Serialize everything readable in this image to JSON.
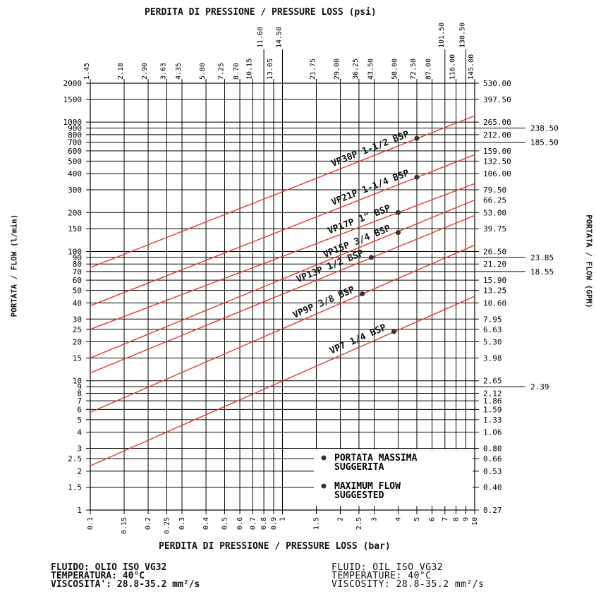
{
  "titles": {
    "top": "PERDITA DI PRESSIONE / PRESSURE LOSS (psi)",
    "bottom": "PERDITA DI PRESSIONE / PRESSURE LOSS (bar)",
    "left": "PORTATA / FLOW (l/min)",
    "right": "PORTATA / FLOW (GPM)"
  },
  "legend": {
    "line1a": "PORTATA MASSIMA",
    "line1b": "SUGGERITA",
    "line2a": "MAXIMUM FLOW",
    "line2b": "SUGGESTED"
  },
  "footer": {
    "it": [
      "FLUIDO: OLIO ISO VG32",
      "TEMPERATURA: 40°C",
      "VISCOSITA': 28.8-35.2 mm²/s"
    ],
    "en": [
      "FLUID: OIL ISO VG32",
      "TEMPERATURE: 40°C",
      "VISCOSITY: 28.8-35.2 mm²/s"
    ]
  },
  "colors": {
    "series": "#e8392b",
    "grid": "#000000",
    "marker": "#333333"
  },
  "chart_data": {
    "type": "line",
    "x_scale": "log",
    "y_scale": "log",
    "xlim": [
      0.1,
      10
    ],
    "ylim": [
      1,
      2000
    ],
    "xlabel": "PERDITA DI PRESSIONE / PRESSURE LOSS (bar)",
    "ylabel": "PORTATA / FLOW (l/min)",
    "x2label": "PERDITA DI PRESSIONE / PRESSURE LOSS (psi)",
    "y2label": "PORTATA / FLOW (GPM)",
    "x_ticks": [
      0.1,
      0.15,
      0.2,
      0.25,
      0.3,
      0.4,
      0.5,
      0.6,
      0.7,
      0.8,
      0.9,
      1,
      1.5,
      2,
      2.5,
      3,
      4,
      5,
      6,
      7,
      8,
      9,
      10
    ],
    "x_tick_labels": [
      "0.1",
      "0.15",
      "0.2",
      "0.25",
      "0.3",
      "0.4",
      "0.5",
      "0.6",
      "0.7",
      "0.8",
      "0.9",
      "1",
      "1.5",
      "2",
      "2.5",
      "3",
      "4",
      "5",
      "6",
      "7",
      "8",
      "9",
      "10"
    ],
    "x2_ticks": [
      0.1,
      0.15,
      0.2,
      0.25,
      0.3,
      0.4,
      0.5,
      0.6,
      0.7,
      0.8,
      0.9,
      1,
      1.5,
      2,
      2.5,
      3,
      4,
      5,
      6,
      7,
      8,
      9,
      10
    ],
    "x2_tick_labels": [
      "1.45",
      "2.18",
      "2.90",
      "3.63",
      "4.35",
      "5.80",
      "7.25",
      "8.70",
      "10.15",
      "11.60",
      "13.05",
      "14.50",
      "21.75",
      "29.00",
      "36.25",
      "43.50",
      "58.00",
      "72.50",
      "87.00",
      "101.50",
      "116.00",
      "130.50",
      "145.00"
    ],
    "y_ticks": [
      1,
      1.5,
      2,
      2.5,
      3,
      4,
      5,
      6,
      7,
      8,
      9,
      10,
      15,
      20,
      25,
      30,
      40,
      50,
      60,
      70,
      80,
      90,
      100,
      150,
      200,
      300,
      400,
      500,
      600,
      700,
      800,
      900,
      1000,
      1500,
      2000
    ],
    "y_tick_labels": [
      "1",
      "1.5",
      "2",
      "2.5",
      "3",
      "4",
      "5",
      "6",
      "7",
      "8",
      "9",
      "10",
      "15",
      "20",
      "25",
      "30",
      "40",
      "50",
      "60",
      "70",
      "80",
      "90",
      "100",
      "150",
      "200",
      "300",
      "400",
      "500",
      "600",
      "700",
      "800",
      "900",
      "1000",
      "1500",
      "2000"
    ],
    "y2_ticks": [
      1,
      1.5,
      2,
      2.5,
      3,
      4,
      5,
      6,
      7,
      8,
      10,
      15,
      20,
      25,
      30,
      40,
      50,
      60,
      80,
      100,
      150,
      200,
      250,
      300,
      400,
      500,
      600,
      800,
      1000,
      1500,
      2000
    ],
    "y2_tick_labels": [
      "0.27",
      "0.40",
      "0.53",
      "0.66",
      "0.80",
      "1.06",
      "1.33",
      "1.59",
      "1.86",
      "2.12",
      "2.65",
      "3.98",
      "5.30",
      "6.63",
      "7.95",
      "10.60",
      "13.25",
      "15.90",
      "21.20",
      "26.50",
      "39.75",
      "53.00",
      "66.25",
      "79.50",
      "106.00",
      "132.50",
      "159.00",
      "212.00",
      "265.00",
      "397.50",
      "530.00"
    ],
    "y2_extra_ticks": [
      9,
      70,
      90,
      700,
      900
    ],
    "y2_extra_labels": [
      "2.39",
      "18.55",
      "23.85",
      "185.50",
      "238.50"
    ],
    "series": [
      {
        "name": "VP30P 1-1/2 BSP",
        "points": [
          [
            0.1,
            75
          ],
          [
            10,
            1120
          ]
        ],
        "max_flow": [
          5.0,
          750
        ]
      },
      {
        "name": "VP21P 1-1/4 BSP",
        "points": [
          [
            0.1,
            38
          ],
          [
            10,
            560
          ]
        ],
        "max_flow": [
          5.0,
          375
        ]
      },
      {
        "name": "VP17P 1\" BSP",
        "points": [
          [
            0.1,
            25
          ],
          [
            10,
            335
          ]
        ],
        "max_flow": [
          4.0,
          200
        ]
      },
      {
        "name": "VP15P 3/4 BSP",
        "points": [
          [
            0.1,
            15
          ],
          [
            10,
            250
          ]
        ],
        "max_flow": [
          4.0,
          140
        ]
      },
      {
        "name": "VP13P 1/2 BSP",
        "points": [
          [
            0.1,
            11.5
          ],
          [
            10,
            190
          ]
        ],
        "max_flow": [
          2.9,
          90
        ]
      },
      {
        "name": "VP9P 3/8 BSP",
        "points": [
          [
            0.1,
            5.7
          ],
          [
            10,
            112
          ]
        ],
        "max_flow": [
          2.6,
          47
        ]
      },
      {
        "name": "VP7 1/4 BSP",
        "points": [
          [
            0.1,
            2.2
          ],
          [
            10,
            45
          ]
        ],
        "max_flow": [
          3.8,
          24
        ]
      }
    ]
  }
}
